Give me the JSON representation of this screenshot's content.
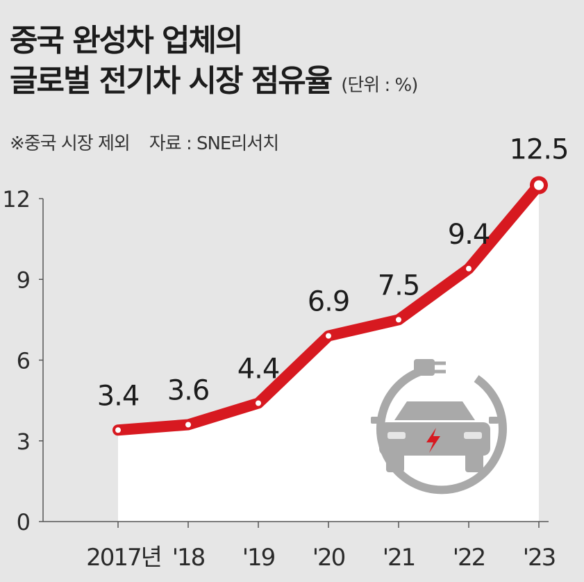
{
  "title_lines": [
    "중국 완성차 업체의",
    "글로벌 전기차 시장 점유율"
  ],
  "unit": "(단위 : %)",
  "note": "※중국 시장 제외",
  "source": "자료 : SNE리서치",
  "chart_data": {
    "type": "area",
    "title": "중국 완성차 업체의 글로벌 전기차 시장 점유율",
    "categories": [
      "2017년",
      "'18",
      "'19",
      "'20",
      "'21",
      "'22",
      "'23"
    ],
    "values": [
      3.4,
      3.6,
      4.4,
      6.9,
      7.5,
      9.4,
      12.5
    ],
    "data_labels": [
      "3.4",
      "3.6",
      "4.4",
      "6.9",
      "7.5",
      "9.4",
      "12.5"
    ],
    "y_ticks": [
      "0",
      "3",
      "6",
      "9",
      "12"
    ],
    "ylim": [
      0,
      12.5
    ],
    "grid": false,
    "legend": "none",
    "colors": {
      "line": "#d71920",
      "area": "#ffffff",
      "axis": "#555555",
      "icon": "#a9a9a9",
      "icon_bolt": "#d71920"
    }
  }
}
